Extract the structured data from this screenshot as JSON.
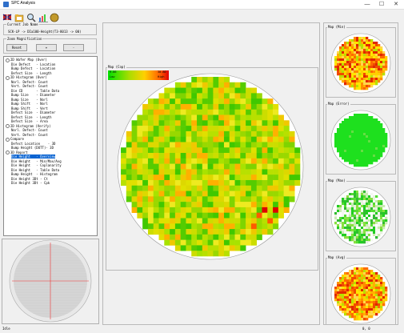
{
  "window": {
    "title": "SPC Analysis",
    "controls": [
      "—",
      "☐",
      "✕"
    ]
  },
  "toolbar": {
    "icons": [
      "flag-icon",
      "folder-icon",
      "search-icon",
      "chart-icon",
      "globe-icon"
    ]
  },
  "lot": {
    "label": "Current Job Name",
    "value": "SCK-LP -> DIa100-Height(T3-8013 -> 00)"
  },
  "zoom": {
    "label": "Zoom Magnification",
    "reset": "Reset",
    "plus": "+",
    "minus": "-"
  },
  "tree": [
    {
      "indent": 0,
      "text": "2D Wafer Map (Over)"
    },
    {
      "indent": 1,
      "text": "Die Defect   - Location"
    },
    {
      "indent": 1,
      "text": "Bump Defect  - Location"
    },
    {
      "indent": 1,
      "text": "Defect Size  - Length"
    },
    {
      "indent": 0,
      "text": "2D Histogram (Over)"
    },
    {
      "indent": 1,
      "text": "Norl. Defect- Count"
    },
    {
      "indent": 1,
      "text": "Vert. Defect- Count"
    },
    {
      "indent": 1,
      "text": "Die CD       - Table Data"
    },
    {
      "indent": 1,
      "text": "Bump Size    - Diameter"
    },
    {
      "indent": 1,
      "text": "Bump Size    - Norl"
    },
    {
      "indent": 1,
      "text": "Bump Shift   - Norl"
    },
    {
      "indent": 1,
      "text": "Bump Shift   - Vert"
    },
    {
      "indent": 1,
      "text": "Defect Size  - Diameter"
    },
    {
      "indent": 1,
      "text": "Defect Size  - Length"
    },
    {
      "indent": 1,
      "text": "Defect Size  - Area"
    },
    {
      "indent": 0,
      "text": "2D Histogram (Verify)"
    },
    {
      "indent": 1,
      "text": "Norl. Defect- Count"
    },
    {
      "indent": 1,
      "text": "Vert. Defect- Count"
    },
    {
      "indent": 0,
      "text": "Compare"
    },
    {
      "indent": 1,
      "text": "Defect Location    - 3D"
    },
    {
      "indent": 1,
      "text": "Bump Height (DUTT)- 3D"
    },
    {
      "indent": 0,
      "text": "3D Report"
    },
    {
      "indent": 1,
      "text": "Die Height   - Overview",
      "selected": true
    },
    {
      "indent": 1,
      "text": "Die Height   - Min/Max/Avg"
    },
    {
      "indent": 1,
      "text": "Die Height   - Coplanarity"
    },
    {
      "indent": 1,
      "text": "Die Height   - Table Data"
    },
    {
      "indent": 1,
      "text": "Bump Height  - Histogram"
    },
    {
      "indent": 1,
      "text": "Die Height 3Dt - Ct"
    },
    {
      "indent": 1,
      "text": "Die Height 3Dt - Cpk"
    }
  ],
  "main_map": {
    "title": "Map (Cop)",
    "legend": {
      "min": "9.86",
      "max": "30.80",
      "low": "Low",
      "high": "High"
    }
  },
  "side_maps": [
    {
      "title": "Map (Min)",
      "scheme": "hot"
    },
    {
      "title": "Map (Error)",
      "scheme": "green"
    },
    {
      "title": "Map (Max)",
      "scheme": "cool"
    },
    {
      "title": "Map (Avg)",
      "scheme": "hot"
    }
  ],
  "status": {
    "left": "Idle",
    "right": "0, 0"
  }
}
